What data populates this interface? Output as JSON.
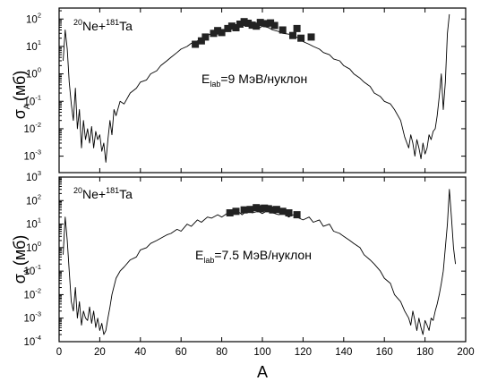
{
  "figure": {
    "ylabel_symbol": "σ",
    "ylabel_subscript": "A",
    "ylabel_unit": "(мб)",
    "xlabel": "A"
  },
  "chart_data": [
    {
      "type": "line",
      "reaction": {
        "proj_mass": "20",
        "proj": "Ne+",
        "targ_mass": "181",
        "targ": "Ta"
      },
      "energy_prefix": "E",
      "energy_sub": "lab",
      "energy_text": "=9 МэВ/нуклон",
      "xlim": [
        0,
        200
      ],
      "ylim_exp": [
        -3.6,
        2.4
      ],
      "ytick_exps": [
        -3,
        -2,
        -1,
        0,
        1,
        2
      ],
      "xticks": [
        0,
        20,
        40,
        60,
        80,
        100,
        120,
        140,
        160,
        180,
        200
      ],
      "log_y": true,
      "series": [
        {
          "kind": "calc-line",
          "x": [
            2,
            3,
            4,
            5,
            6,
            7,
            8,
            9,
            10,
            11,
            12,
            13,
            14,
            15,
            16,
            17,
            18,
            19,
            20,
            21,
            22,
            23,
            24,
            25,
            26,
            27,
            28,
            30,
            32,
            35,
            38,
            40,
            43,
            45,
            48,
            50,
            53,
            55,
            58,
            60,
            63,
            65,
            68,
            70,
            73,
            75,
            78,
            80,
            83,
            85,
            88,
            90,
            93,
            95,
            98,
            100,
            103,
            105,
            108,
            110,
            113,
            115,
            118,
            120,
            123,
            125,
            128,
            130,
            133,
            135,
            138,
            140,
            143,
            145,
            148,
            150,
            153,
            155,
            158,
            160,
            163,
            165,
            168,
            170,
            172,
            173,
            174,
            175,
            176,
            177,
            178,
            179,
            180,
            181,
            182,
            183,
            184,
            185,
            186,
            187,
            188,
            189,
            190,
            191,
            192
          ],
          "y": [
            3,
            40,
            8,
            0.5,
            0.08,
            0.02,
            0.3,
            0.01,
            0.05,
            0.002,
            0.02,
            0.004,
            0.01,
            0.003,
            0.012,
            0.002,
            0.008,
            0.004,
            0.006,
            0.0015,
            0.003,
            0.0006,
            0.004,
            0.02,
            0.006,
            0.05,
            0.03,
            0.1,
            0.08,
            0.2,
            0.3,
            0.5,
            0.6,
            1.0,
            1.3,
            2.0,
            3.0,
            4.0,
            6.0,
            8.0,
            10,
            13,
            16,
            20,
            25,
            30,
            28,
            40,
            35,
            50,
            45,
            60,
            55,
            50,
            45,
            55,
            48,
            40,
            35,
            30,
            28,
            25,
            20,
            15,
            12,
            10,
            8,
            6,
            5,
            3.5,
            3.0,
            2.0,
            1.5,
            1.0,
            0.7,
            0.5,
            0.35,
            0.2,
            0.15,
            0.1,
            0.08,
            0.05,
            0.02,
            0.005,
            0.002,
            0.006,
            0.003,
            0.001,
            0.004,
            0.002,
            0.0008,
            0.003,
            0.0012,
            0.002,
            0.006,
            0.004,
            0.008,
            0.01,
            0.03,
            0.15,
            1,
            0.05,
            0.5,
            30,
            150
          ]
        },
        {
          "kind": "exp-points",
          "x": [
            67,
            70,
            72,
            76,
            78,
            80,
            83,
            85,
            87,
            89,
            91,
            93,
            95,
            97,
            99,
            102,
            104,
            106,
            110,
            115,
            117,
            119,
            124
          ],
          "y": [
            12,
            16,
            22,
            30,
            38,
            32,
            45,
            55,
            48,
            65,
            80,
            70,
            60,
            55,
            75,
            68,
            72,
            58,
            40,
            25,
            45,
            20,
            22
          ]
        }
      ]
    },
    {
      "type": "line",
      "reaction": {
        "proj_mass": "20",
        "proj": "Ne+",
        "targ_mass": "181",
        "targ": "Ta"
      },
      "energy_prefix": "E",
      "energy_sub": "lab",
      "energy_text": "=7.5 МэВ/нуклон",
      "xlim": [
        0,
        200
      ],
      "ylim_exp": [
        -4,
        3
      ],
      "ytick_exps": [
        -4,
        -3,
        -2,
        -1,
        0,
        1,
        2,
        3
      ],
      "xticks": [
        0,
        20,
        40,
        60,
        80,
        100,
        120,
        140,
        160,
        180,
        200
      ],
      "log_y": true,
      "series": [
        {
          "kind": "calc-line",
          "x": [
            2,
            3,
            4,
            5,
            6,
            7,
            8,
            9,
            10,
            11,
            12,
            13,
            14,
            15,
            16,
            17,
            18,
            19,
            20,
            21,
            22,
            23,
            24,
            25,
            26,
            28,
            30,
            32,
            35,
            38,
            40,
            43,
            45,
            48,
            50,
            53,
            55,
            58,
            60,
            63,
            65,
            68,
            70,
            73,
            75,
            78,
            80,
            83,
            85,
            88,
            90,
            93,
            95,
            98,
            100,
            103,
            105,
            108,
            110,
            113,
            115,
            118,
            120,
            123,
            125,
            128,
            130,
            133,
            135,
            138,
            140,
            143,
            145,
            148,
            150,
            153,
            155,
            158,
            160,
            163,
            165,
            168,
            170,
            172,
            173,
            174,
            175,
            176,
            177,
            178,
            179,
            180,
            181,
            182,
            183,
            184,
            185,
            186,
            187,
            188,
            189,
            190,
            191,
            192,
            193,
            194,
            195
          ],
          "y": [
            0.5,
            20,
            2,
            0.1,
            0.005,
            0.002,
            0.02,
            0.001,
            0.005,
            0.0005,
            0.002,
            0.001,
            0.0008,
            0.003,
            0.0006,
            0.002,
            0.0004,
            0.001,
            0.0003,
            0.0006,
            0.0002,
            0.0003,
            0.001,
            0.003,
            0.01,
            0.05,
            0.1,
            0.15,
            0.3,
            0.4,
            0.8,
            1.0,
            1.5,
            2.0,
            2.5,
            3.5,
            4.0,
            6,
            5,
            10,
            8,
            15,
            12,
            20,
            18,
            25,
            20,
            30,
            28,
            35,
            25,
            40,
            30,
            35,
            28,
            40,
            30,
            25,
            30,
            20,
            25,
            18,
            15,
            20,
            12,
            15,
            8,
            10,
            5,
            4,
            3,
            2.0,
            1.5,
            1.0,
            0.5,
            0.3,
            0.2,
            0.1,
            0.05,
            0.03,
            0.01,
            0.005,
            0.002,
            0.001,
            0.0005,
            0.002,
            0.0008,
            0.0003,
            0.001,
            0.0004,
            0.0002,
            0.0008,
            0.0005,
            0.0003,
            0.001,
            0.0008,
            0.002,
            0.004,
            0.01,
            0.03,
            0.1,
            1,
            10,
            300,
            20,
            1,
            0.2
          ]
        },
        {
          "kind": "exp-points",
          "x": [
            84,
            87,
            91,
            94,
            97,
            99,
            101,
            103,
            105,
            107,
            110,
            113,
            117
          ],
          "y": [
            30,
            35,
            40,
            42,
            50,
            45,
            48,
            45,
            40,
            42,
            35,
            30,
            25
          ]
        }
      ]
    }
  ]
}
